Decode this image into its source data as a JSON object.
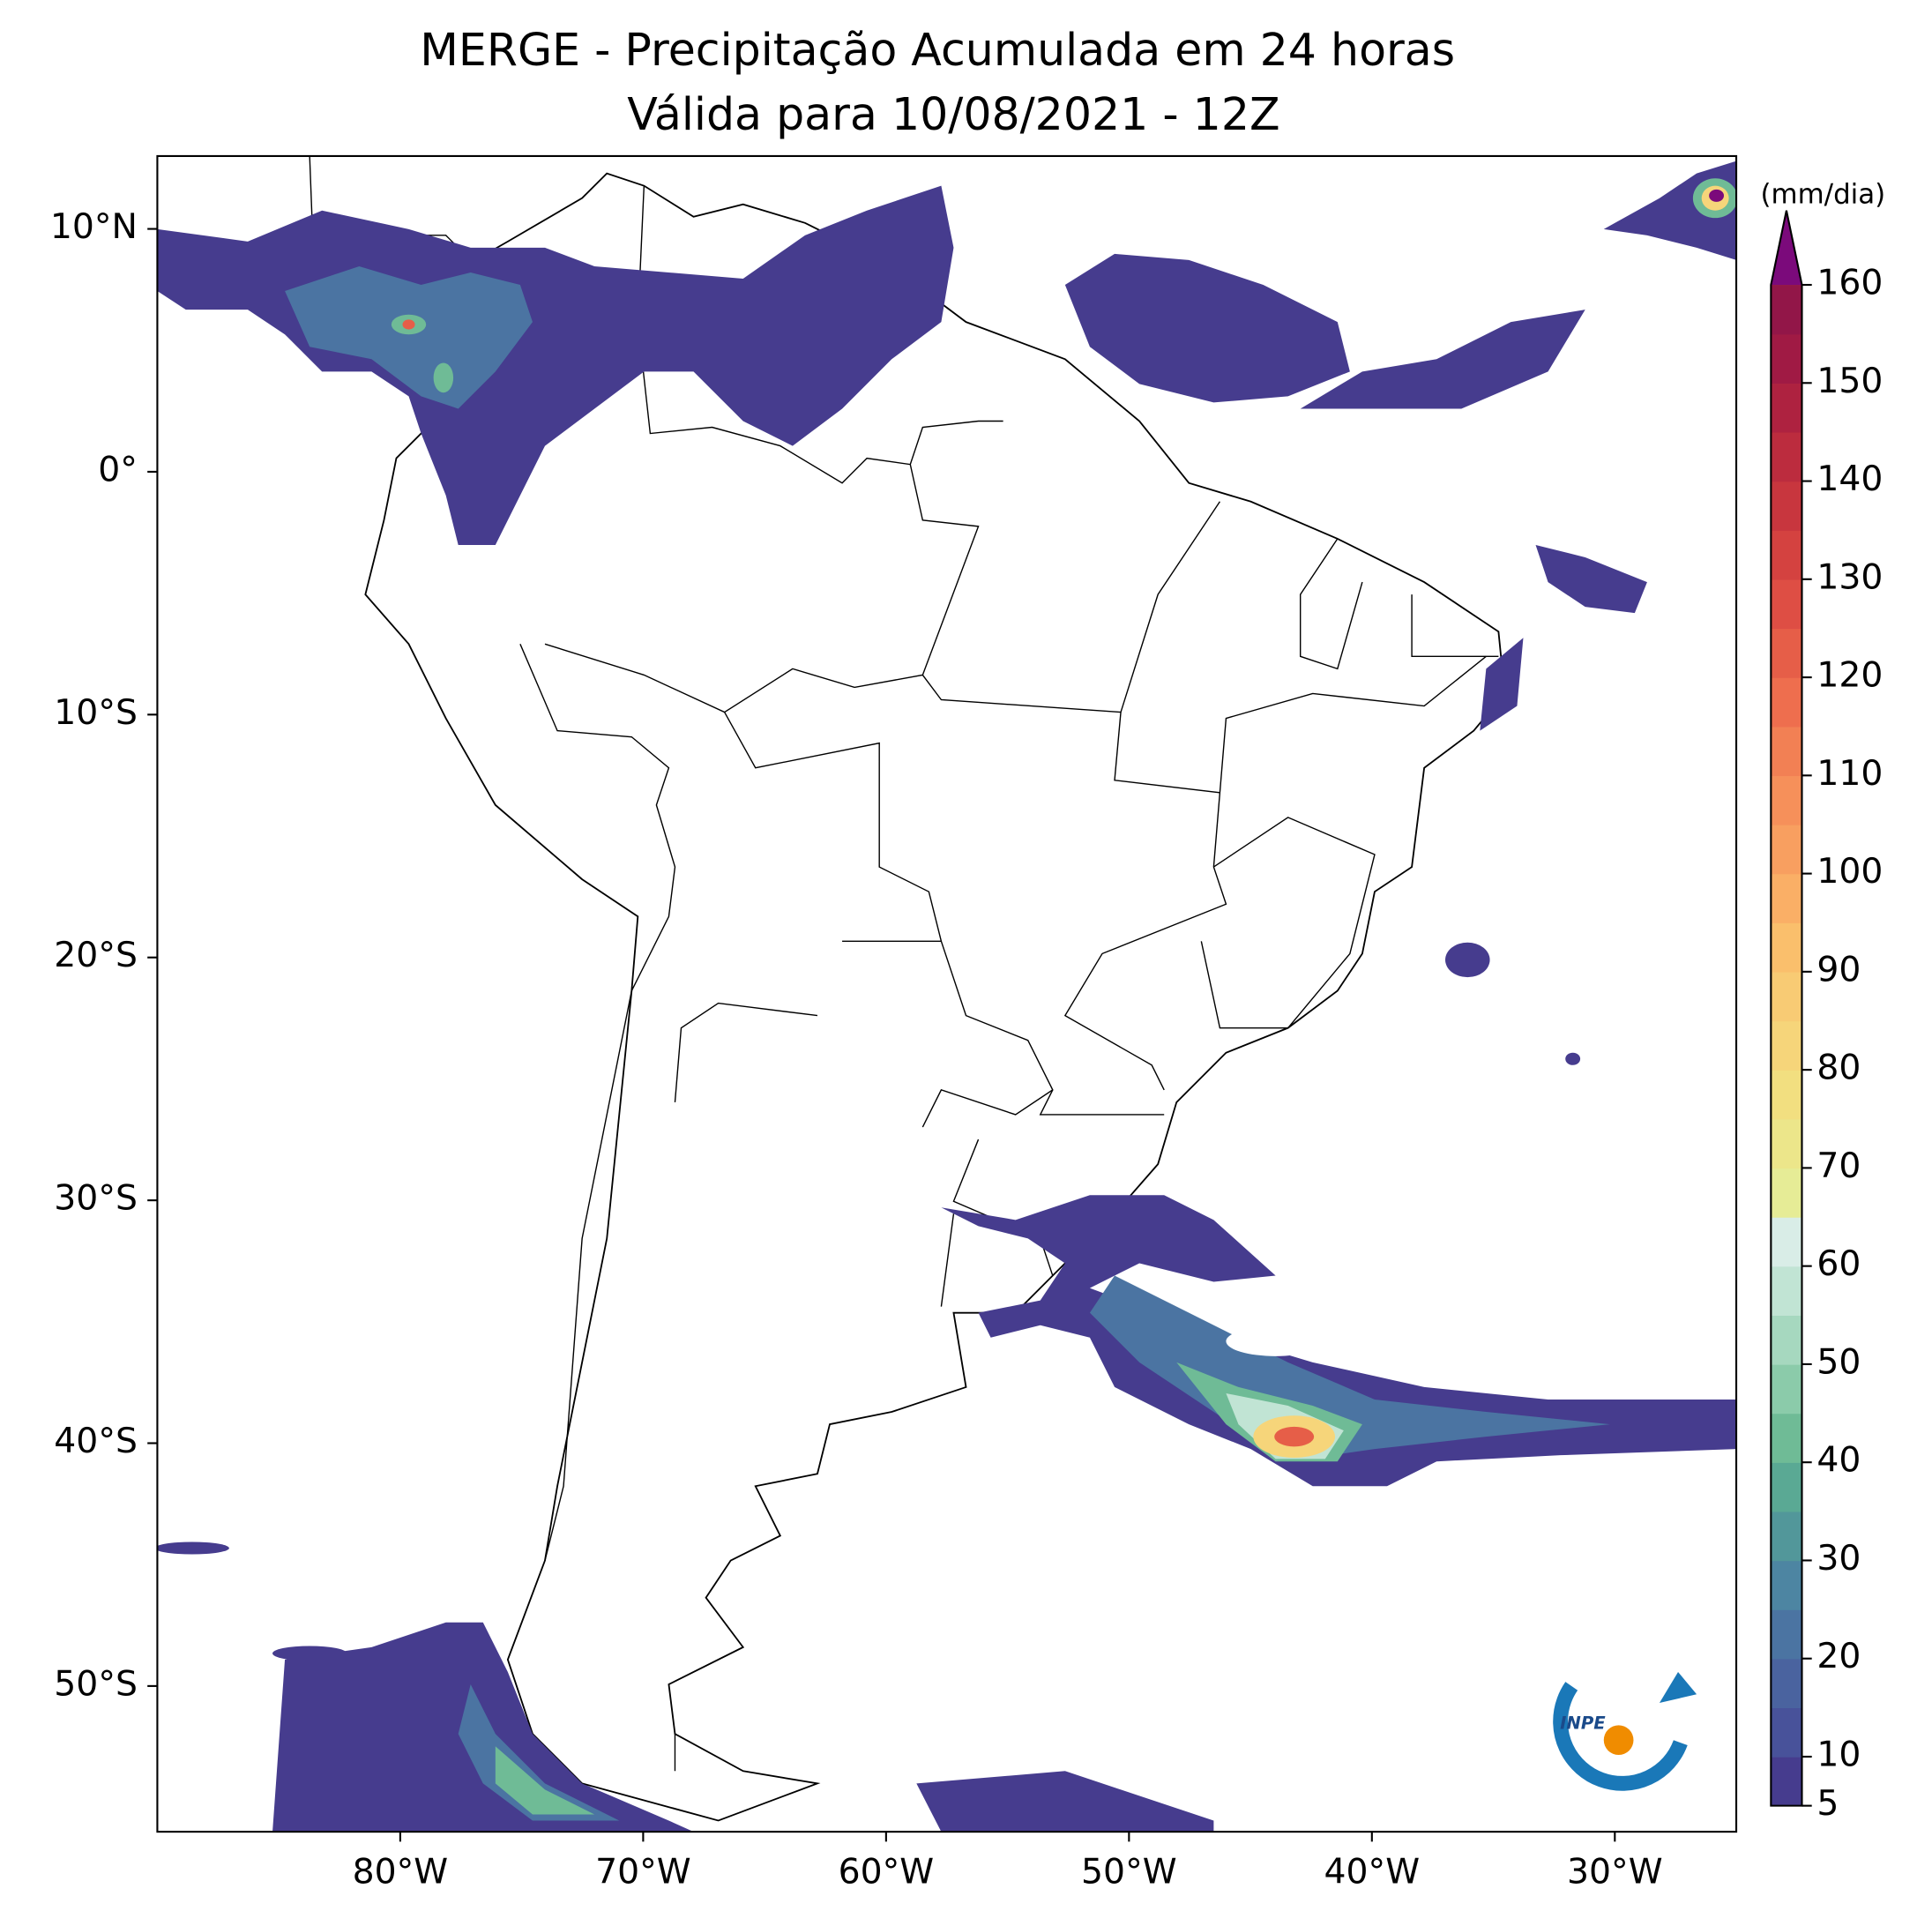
{
  "title": "MERGE - Precipitação Acumulada em 24 horas",
  "subtitle": "Válida para 10/08/2021 - 12Z",
  "map": {
    "xlim": [
      -90,
      -25
    ],
    "ylim": [
      -56,
      13
    ],
    "xticks": [
      {
        "value": -80,
        "label": "80°W"
      },
      {
        "value": -70,
        "label": "70°W"
      },
      {
        "value": -60,
        "label": "60°W"
      },
      {
        "value": -50,
        "label": "50°W"
      },
      {
        "value": -40,
        "label": "40°W"
      },
      {
        "value": -30,
        "label": "30°W"
      }
    ],
    "yticks": [
      {
        "value": 10,
        "label": "10°N"
      },
      {
        "value": 0,
        "label": "0°"
      },
      {
        "value": -10,
        "label": "10°S"
      },
      {
        "value": -20,
        "label": "20°S"
      },
      {
        "value": -30,
        "label": "30°S"
      },
      {
        "value": -40,
        "label": "40°S"
      },
      {
        "value": -50,
        "label": "50°S"
      }
    ]
  },
  "colorbar": {
    "unit": "(mm/dia)",
    "ticks": [
      5,
      10,
      20,
      30,
      40,
      50,
      60,
      70,
      80,
      90,
      100,
      110,
      120,
      130,
      140,
      150,
      160
    ],
    "levels": [
      5,
      10,
      15,
      20,
      25,
      30,
      35,
      40,
      45,
      50,
      55,
      60,
      65,
      70,
      75,
      80,
      85,
      90,
      95,
      100,
      105,
      110,
      115,
      120,
      125,
      130,
      135,
      140,
      145,
      150,
      155,
      160
    ],
    "colors": [
      "#463c8e",
      "#48529a",
      "#4a639f",
      "#4b74a2",
      "#4d85a2",
      "#52979a",
      "#5aa994",
      "#6fbb96",
      "#8bcbaa",
      "#a6d8bf",
      "#c1e4d4",
      "#d9ede7",
      "#e6ec96",
      "#ece68a",
      "#f2df80",
      "#f6d57a",
      "#f8cb74",
      "#fabf6c",
      "#faaf66",
      "#f89f60",
      "#f6905a",
      "#f28054",
      "#ee6e4e",
      "#e65e48",
      "#de4e44",
      "#d44240",
      "#c8363e",
      "#bc2c3e",
      "#ae2240",
      "#a01a44",
      "#921648"
    ],
    "extend_color": "#7b0a7b"
  },
  "logo": {
    "text": "INPE"
  }
}
